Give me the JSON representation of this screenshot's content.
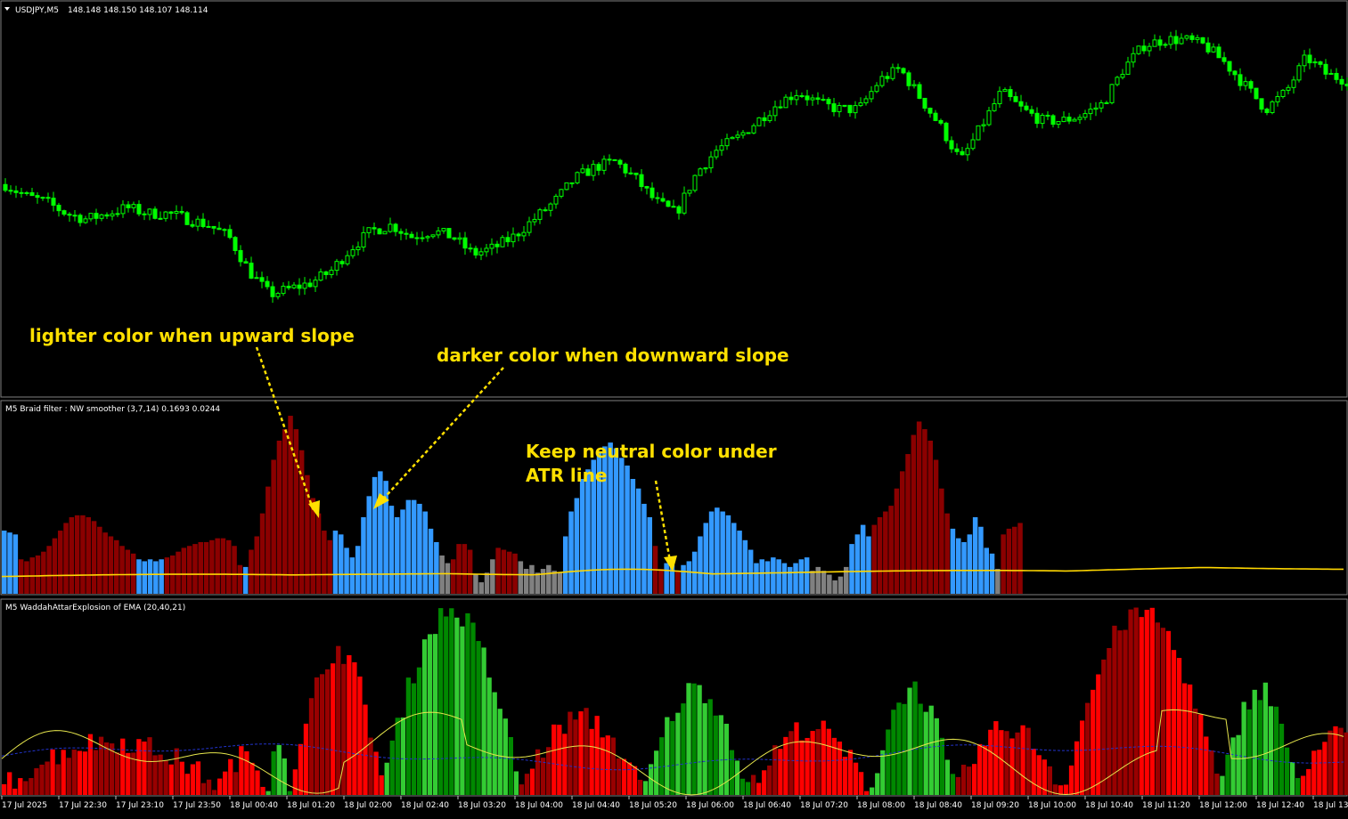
{
  "main_panel": {
    "symbol": "USDJPY,M5",
    "ohlc": "148.148 148.150 148.107 148.114",
    "menu_icon": "triangle-down-icon"
  },
  "indicator1": {
    "title": "M5 Braid filter : NW smoother  (3,7,14) 0.1693 0.0244"
  },
  "indicator2": {
    "title": "M5 WaddahAttarExplosion of EMA (20,40,21)"
  },
  "annotations": {
    "lighter": "lighter color when upward slope",
    "darker": "darker color when downward slope",
    "neutral_line1": "Keep neutral color under",
    "neutral_line2": "ATR line"
  },
  "time_axis": {
    "labels": [
      "17 Jul 2025",
      "17 Jul 22:30",
      "17 Jul 23:10",
      "17 Jul 23:50",
      "18 Jul 00:40",
      "18 Jul 01:20",
      "18 Jul 02:00",
      "18 Jul 02:40",
      "18 Jul 03:20",
      "18 Jul 04:00",
      "18 Jul 04:40",
      "18 Jul 05:20",
      "18 Jul 06:00",
      "18 Jul 06:40",
      "18 Jul 07:20",
      "18 Jul 08:00",
      "18 Jul 08:40",
      "18 Jul 09:20",
      "18 Jul 10:00",
      "18 Jul 10:40",
      "18 Jul 11:20",
      "18 Jul 12:00",
      "18 Jul 12:40",
      "18 Jul 13:"
    ]
  },
  "colors": {
    "background": "#000000",
    "candle": "#00ff00",
    "up_dark": "#8b0000",
    "blue": "#3399ff",
    "neutral": "#808080",
    "atr_line": "#ffd700",
    "wae_red": "#ff0000",
    "wae_darkred": "#990000",
    "wae_green": "#33cc33",
    "wae_darkgreen": "#008800",
    "annotation": "#ffe000",
    "separator": "#c0c0c0"
  },
  "chart_data": [
    {
      "type": "candlestick",
      "title": "USDJPY,M5",
      "close_path": [
        148.17,
        148.15,
        148.14,
        148.12,
        148.11,
        148.12,
        148.13,
        148.12,
        148.12,
        148.11,
        148.1,
        148.08,
        148.02,
        147.98,
        147.99,
        148.0,
        148.02,
        148.06,
        148.09,
        148.1,
        148.08,
        148.09,
        148.08,
        148.05,
        148.06,
        148.08,
        148.11,
        148.14,
        148.18,
        148.2,
        148.21,
        148.18,
        148.14,
        148.12,
        148.19,
        148.23,
        148.25,
        148.28,
        148.31,
        148.33,
        148.31,
        148.3,
        148.3,
        148.35,
        148.37,
        148.32,
        148.27,
        148.21,
        148.27,
        148.33,
        148.3,
        148.28,
        148.28,
        148.29,
        148.31,
        148.37,
        148.41,
        148.42,
        148.42,
        148.41,
        148.38,
        148.34,
        148.3,
        148.33,
        148.39,
        148.36,
        148.35
      ]
    },
    {
      "type": "bar",
      "title": "Braid filter : NW smoother (3,7,14)",
      "values_text": [
        "0.1693",
        "0.0244"
      ],
      "segments": [
        {
          "color": "blue",
          "heights": [
            0.33,
            0.32,
            0.31
          ]
        },
        {
          "color": "up_dark",
          "heights": [
            0.18,
            0.17,
            0.19,
            0.2,
            0.22,
            0.25,
            0.29,
            0.33,
            0.37,
            0.4,
            0.41,
            0.41,
            0.4,
            0.38,
            0.35,
            0.32,
            0.3,
            0.28,
            0.25,
            0.23,
            0.21
          ]
        },
        {
          "color": "blue",
          "heights": [
            0.18,
            0.17,
            0.18,
            0.17,
            0.18
          ]
        },
        {
          "color": "up_dark",
          "heights": [
            0.19,
            0.2,
            0.22,
            0.24,
            0.25,
            0.26,
            0.27,
            0.27,
            0.28,
            0.29,
            0.29,
            0.28,
            0.25,
            0.15
          ]
        },
        {
          "color": "blue",
          "heights": [
            0.14
          ]
        },
        {
          "color": "up_dark",
          "heights": [
            0.23,
            0.3,
            0.42,
            0.56,
            0.7,
            0.8,
            0.86,
            0.93,
            0.86,
            0.75,
            0.62,
            0.5,
            0.42,
            0.33,
            0.28
          ]
        },
        {
          "color": "blue",
          "heights": [
            0.33,
            0.31,
            0.24,
            0.19,
            0.25,
            0.4,
            0.51,
            0.61,
            0.64,
            0.59,
            0.46,
            0.4,
            0.44,
            0.49,
            0.49,
            0.47,
            0.43,
            0.34,
            0.27
          ]
        },
        {
          "color": "neutral",
          "heights": [
            0.2,
            0.16
          ]
        },
        {
          "color": "up_dark",
          "heights": [
            0.18,
            0.26,
            0.26,
            0.23
          ]
        },
        {
          "color": "neutral",
          "heights": [
            0.1,
            0.06,
            0.11,
            0.18
          ]
        },
        {
          "color": "up_dark",
          "heights": [
            0.24,
            0.23,
            0.22,
            0.21
          ]
        },
        {
          "color": "neutral",
          "heights": [
            0.17,
            0.13,
            0.15,
            0.11,
            0.13,
            0.15,
            0.12,
            0.11
          ]
        },
        {
          "color": "blue",
          "heights": [
            0.3,
            0.43,
            0.5,
            0.6,
            0.65,
            0.7,
            0.74,
            0.77,
            0.79,
            0.76,
            0.71,
            0.67,
            0.6,
            0.55,
            0.47,
            0.4
          ]
        },
        {
          "color": "up_dark",
          "heights": [
            0.25,
            0.13
          ]
        },
        {
          "color": "blue",
          "heights": [
            0.16,
            0.15
          ]
        },
        {
          "color": "up_dark",
          "heights": [
            0.12
          ]
        },
        {
          "color": "blue",
          "heights": [
            0.15,
            0.17,
            0.22,
            0.3,
            0.37,
            0.43,
            0.45,
            0.43,
            0.41,
            0.37,
            0.33,
            0.28,
            0.23
          ]
        },
        {
          "color": "blue",
          "heights": [
            0.16,
            0.18,
            0.17,
            0.19,
            0.18,
            0.16,
            0.14
          ]
        },
        {
          "color": "blue",
          "heights": [
            0.16,
            0.18,
            0.19
          ]
        },
        {
          "color": "neutral",
          "heights": [
            0.12,
            0.14,
            0.12,
            0.1,
            0.07,
            0.09,
            0.14
          ]
        },
        {
          "color": "blue",
          "heights": [
            0.26,
            0.31,
            0.36,
            0.3
          ]
        },
        {
          "color": "up_dark",
          "heights": [
            0.36,
            0.4,
            0.43,
            0.46,
            0.55,
            0.64,
            0.73,
            0.83,
            0.9,
            0.86,
            0.8,
            0.7,
            0.55,
            0.42
          ]
        },
        {
          "color": "blue",
          "heights": [
            0.34,
            0.29,
            0.27,
            0.31,
            0.4,
            0.35,
            0.24,
            0.21
          ]
        },
        {
          "color": "neutral",
          "heights": [
            0.13
          ]
        },
        {
          "color": "up_dark",
          "heights": [
            0.31,
            0.34,
            0.35,
            0.37
          ]
        }
      ]
    },
    {
      "type": "bar",
      "title": "WaddahAttarExplosion of EMA (20,40,21)"
    }
  ]
}
